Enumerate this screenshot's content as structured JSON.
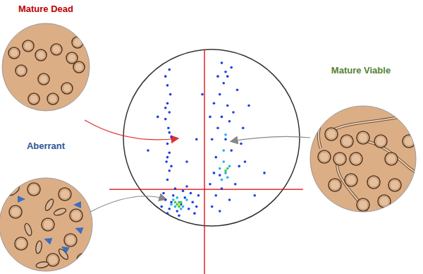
{
  "micrographs": [
    {
      "label": "Mature Dead",
      "color": "#c00000"
    },
    {
      "label": "Aberrant",
      "color": "#2f5597"
    },
    {
      "label": "Mature Viable",
      "color": "#548235"
    }
  ],
  "chart_data": {
    "type": "scatter",
    "xlim": [
      0,
      100
    ],
    "ylim": [
      0,
      100
    ],
    "tick_labels": false,
    "gates": {
      "x": 49.1,
      "y": 37.7,
      "color": "#e00000"
    },
    "series": [
      {
        "color": "#1f3fe0",
        "points": [
          [
            30,
            42
          ],
          [
            31,
            46
          ],
          [
            29.5,
            50
          ],
          [
            31,
            54
          ],
          [
            30,
            58
          ],
          [
            32,
            61
          ],
          [
            30.5,
            65
          ],
          [
            29,
            69
          ],
          [
            31,
            72
          ],
          [
            30,
            76
          ],
          [
            31.5,
            80
          ],
          [
            30,
            84
          ],
          [
            29,
            88
          ],
          [
            31,
            91
          ],
          [
            32,
            48
          ],
          [
            30,
            52
          ],
          [
            31,
            63
          ],
          [
            29,
            74
          ],
          [
            27,
            30
          ],
          [
            29,
            33
          ],
          [
            31,
            29
          ],
          [
            33,
            35
          ],
          [
            35,
            28
          ],
          [
            37,
            31
          ],
          [
            39,
            34
          ],
          [
            41,
            29
          ],
          [
            43,
            32
          ],
          [
            45,
            30
          ],
          [
            46,
            35
          ],
          [
            28,
            36
          ],
          [
            34,
            38
          ],
          [
            38,
            37
          ],
          [
            42,
            36
          ],
          [
            30,
            27
          ],
          [
            36,
            26
          ],
          [
            44,
            27
          ],
          [
            40,
            39
          ],
          [
            32,
            32
          ],
          [
            53,
            30
          ],
          [
            55,
            35
          ],
          [
            57,
            28
          ],
          [
            52,
            40
          ],
          [
            54,
            45
          ],
          [
            58,
            38
          ],
          [
            62,
            33
          ],
          [
            65,
            40
          ],
          [
            67,
            48
          ],
          [
            63,
            55
          ],
          [
            60,
            60
          ],
          [
            56,
            65
          ],
          [
            58,
            70
          ],
          [
            61,
            75
          ],
          [
            57,
            80
          ],
          [
            59,
            85
          ],
          [
            60,
            90
          ],
          [
            58,
            94
          ],
          [
            62,
            68
          ],
          [
            55,
            52
          ],
          [
            68,
            58
          ],
          [
            64,
            72
          ],
          [
            54,
            76
          ],
          [
            66,
            82
          ],
          [
            53,
            60
          ],
          [
            70,
            50
          ],
          [
            61,
            88
          ],
          [
            56,
            88
          ],
          [
            63,
            92
          ],
          [
            52,
            70
          ],
          [
            69,
            65
          ],
          [
            57,
            44
          ],
          [
            20,
            55
          ],
          [
            25,
            70
          ],
          [
            45,
            60
          ],
          [
            75,
            35
          ],
          [
            80,
            45
          ],
          [
            48,
            80
          ],
          [
            40,
            50
          ],
          [
            72,
            75
          ]
        ]
      },
      {
        "color": "#19b4e6",
        "points": [
          [
            32,
            31
          ],
          [
            34,
            30
          ],
          [
            36,
            32
          ],
          [
            38,
            30
          ],
          [
            40,
            33
          ],
          [
            35,
            34
          ],
          [
            37,
            29
          ],
          [
            33,
            33
          ],
          [
            58,
            42
          ],
          [
            60,
            45
          ],
          [
            62,
            48
          ],
          [
            59,
            50
          ],
          [
            61,
            43
          ],
          [
            57,
            47
          ],
          [
            59,
            55
          ],
          [
            60,
            62
          ]
        ]
      },
      {
        "color": "#3cc83c",
        "points": [
          [
            35,
            31
          ],
          [
            36,
            30
          ],
          [
            37,
            32
          ],
          [
            34,
            32
          ],
          [
            60,
            46
          ],
          [
            61,
            47
          ]
        ]
      },
      {
        "color": "#f5e614",
        "points": [
          [
            36,
            31
          ]
        ]
      }
    ]
  }
}
